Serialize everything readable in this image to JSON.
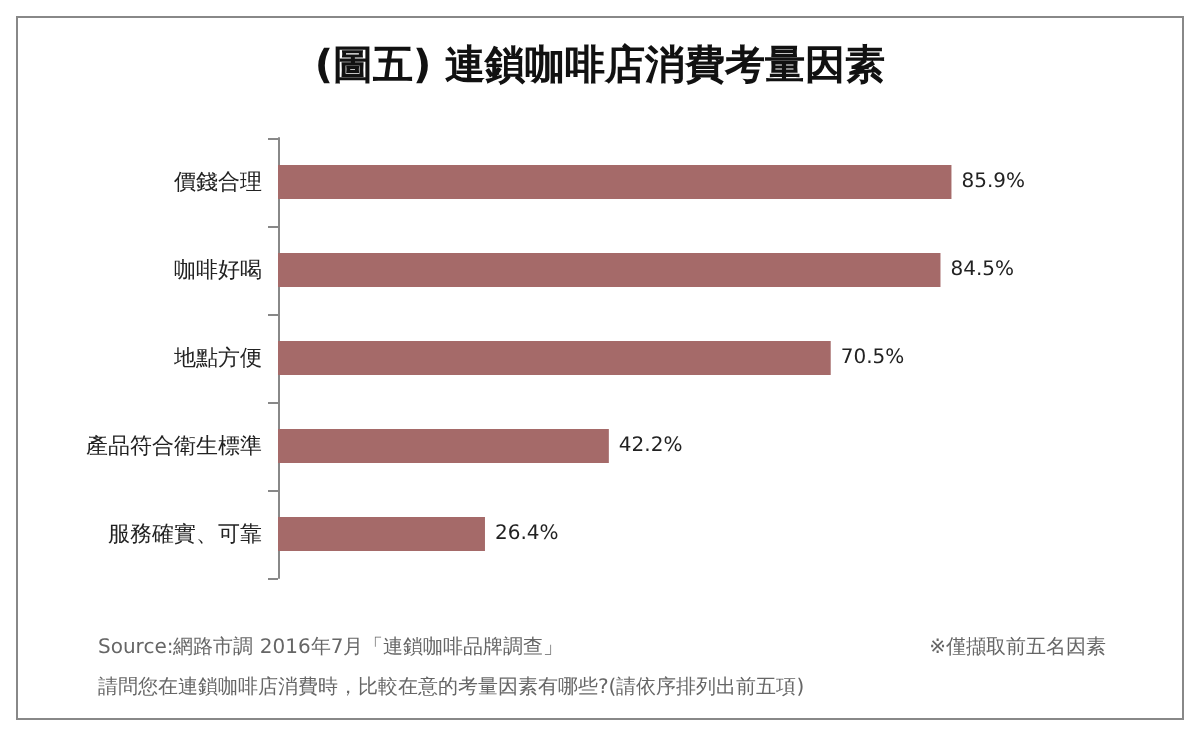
{
  "chart_data": {
    "type": "bar",
    "orientation": "horizontal",
    "title": "(圖五) 連鎖咖啡店消費考量因素",
    "categories": [
      "價錢合理",
      "咖啡好喝",
      "地點方便",
      "產品符合衛生標準",
      "服務確實、可靠"
    ],
    "values": [
      85.9,
      84.5,
      70.5,
      42.2,
      26.4
    ],
    "value_labels": [
      "85.9%",
      "84.5%",
      "70.5%",
      "42.2%",
      "26.4%"
    ],
    "color": "#a56a69",
    "annotations": [
      "Source:網路市調 2016年7月「連鎖咖啡品牌調查」",
      "※僅擷取前五名因素",
      "請問您在連鎖咖啡店消費時，比較在意的考量因素有哪些?(請依序排列出前五項)"
    ]
  }
}
